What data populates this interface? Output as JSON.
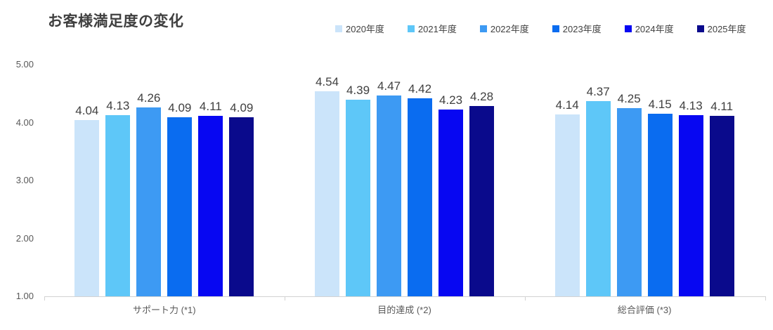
{
  "chart_data": {
    "type": "bar",
    "title": "お客様満足度の変化",
    "categories": [
      "サポート力 (*1)",
      "目的達成 (*2)",
      "総合評価 (*3)"
    ],
    "series": [
      {
        "name": "2020年度",
        "color": "#cbe4fa",
        "values": [
          4.04,
          4.54,
          4.14
        ]
      },
      {
        "name": "2021年度",
        "color": "#5ec7f8",
        "values": [
          4.13,
          4.39,
          4.37
        ]
      },
      {
        "name": "2022年度",
        "color": "#3d9af3",
        "values": [
          4.26,
          4.47,
          4.25
        ]
      },
      {
        "name": "2023年度",
        "color": "#0a6cf0",
        "values": [
          4.09,
          4.42,
          4.15
        ]
      },
      {
        "name": "2024年度",
        "color": "#0707f2",
        "values": [
          4.11,
          4.23,
          4.13
        ]
      },
      {
        "name": "2025年度",
        "color": "#0a0a8c",
        "values": [
          4.09,
          4.28,
          4.11
        ]
      }
    ],
    "ylim": [
      1,
      5
    ],
    "yticks": [
      {
        "label": "5.00",
        "value": 5
      },
      {
        "label": "4.00",
        "value": 4
      },
      {
        "label": "3.00",
        "value": 3
      },
      {
        "label": "2.00",
        "value": 2
      },
      {
        "label": "1.00",
        "value": 1
      }
    ],
    "value_decimals": 2,
    "grid": false,
    "legend_position": "top",
    "colors": {
      "title_text": "#3f3f3f",
      "data_label_text": "#404040",
      "axis_tick_text": "#595959",
      "axis_line": "#d2d2d2",
      "background": "#ffffff"
    }
  }
}
